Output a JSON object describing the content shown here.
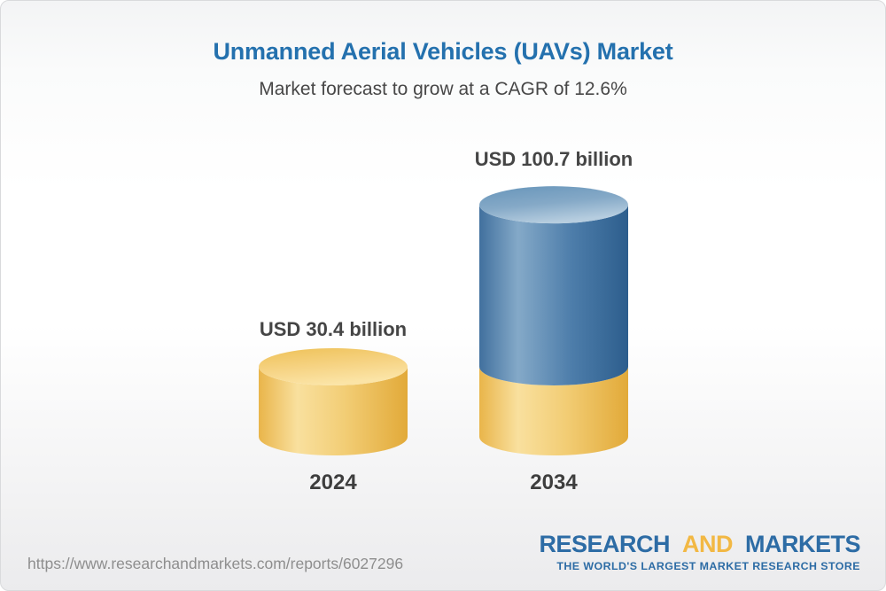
{
  "header": {
    "title": "Unmanned Aerial Vehicles (UAVs) Market",
    "subtitle": "Market forecast to grow at a CAGR of 12.6%"
  },
  "chart_data": {
    "type": "bar",
    "variant": "3d-cylinder",
    "categories": [
      "2024",
      "2034"
    ],
    "values": [
      30.4,
      100.7
    ],
    "unit": "USD billion",
    "value_labels": [
      "USD 30.4 billion",
      "USD 100.7 billion"
    ],
    "title": "Unmanned Aerial Vehicles (UAVs) Market",
    "subtitle": "Market forecast to grow at a CAGR of 12.6%",
    "cagr_percent": 12.6,
    "ylim": [
      0,
      110
    ],
    "grid": false,
    "legend": false,
    "bar_colors": {
      "2024": "#f2c868",
      "2034_segment_top": "#4a7dab",
      "2034_segment_base": "#f2c868"
    },
    "stacked_note": "2034 bar shows the 2024 value as a yellow base segment below the blue growth segment"
  },
  "footer": {
    "source_url": "https://www.researchandmarkets.com/reports/6027296",
    "logo": {
      "word1": "RESEARCH",
      "word2": "AND",
      "word3": "MARKETS",
      "tagline": "THE WORLD'S LARGEST MARKET RESEARCH STORE",
      "brand_blue": "#2d6ca5",
      "brand_gold": "#f2b844"
    }
  },
  "colors": {
    "title_blue": "#2471ae",
    "subtitle_gray": "#474747",
    "label_gray": "#454545",
    "url_gray": "#8e8e8e",
    "yellow_edge_dark": "#e9b54a",
    "yellow_highlight": "#f9e09e",
    "blue_edge_dark": "#2d5e8d",
    "blue_highlight": "#84a9c8"
  }
}
